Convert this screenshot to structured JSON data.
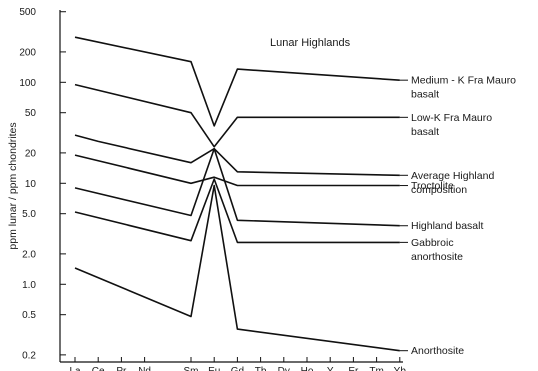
{
  "chart_data": {
    "type": "line",
    "title": "Lunar Highlands",
    "ylabel": "ppm lunar / ppm chondrites",
    "xlabel": "",
    "y_scale": "log",
    "ylim": [
      0.17,
      520
    ],
    "grid": false,
    "categories": [
      "La",
      "Ce",
      "Pr",
      "Nd",
      "Pm",
      "Sm",
      "Eu",
      "Gd",
      "Tb",
      "Dy",
      "Ho",
      "Y",
      "Er",
      "Tm",
      "Yb"
    ],
    "x_tick_labels": [
      "La",
      "Ce",
      "Pr",
      "Nd",
      "Sm",
      "Eu",
      "Gd",
      "Tb",
      "Dy",
      "Ho",
      "Y",
      "Er",
      "Tm",
      "Yb"
    ],
    "y_ticks": [
      0.2,
      0.5,
      1.0,
      2.0,
      5.0,
      10,
      20,
      50,
      100,
      200,
      500
    ],
    "y_tick_labels": [
      "0.2",
      "0.5",
      "1.0",
      "2.0",
      "5.0",
      "10",
      "20",
      "50",
      "100",
      "200",
      "500"
    ],
    "series": [
      {
        "label_lines": [
          "Medium - K Fra Mauro",
          "basalt"
        ],
        "points": [
          [
            "La",
            280
          ],
          [
            "Sm",
            160
          ],
          [
            "Eu",
            37
          ],
          [
            "Gd",
            135
          ],
          [
            "Yb",
            105
          ]
        ]
      },
      {
        "label_lines": [
          "Low-K Fra Mauro",
          "basalt"
        ],
        "points": [
          [
            "La",
            95
          ],
          [
            "Sm",
            50
          ],
          [
            "Eu",
            23
          ],
          [
            "Gd",
            45
          ],
          [
            "Yb",
            45
          ]
        ]
      },
      {
        "label_lines": [
          "Average Highland",
          "composition"
        ],
        "points": [
          [
            "La",
            30
          ],
          [
            "Ce",
            26
          ],
          [
            "Sm",
            16
          ],
          [
            "Eu",
            22
          ],
          [
            "Gd",
            13
          ],
          [
            "Yb",
            12
          ]
        ]
      },
      {
        "label_lines": [
          "Troctolite"
        ],
        "points": [
          [
            "La",
            19
          ],
          [
            "Sm",
            10
          ],
          [
            "Eu",
            11.5
          ],
          [
            "Gd",
            9.5
          ],
          [
            "Yb",
            9.5
          ]
        ]
      },
      {
        "label_lines": [
          "Highland basalt"
        ],
        "points": [
          [
            "La",
            9
          ],
          [
            "Sm",
            4.8
          ],
          [
            "Eu",
            22
          ],
          [
            "Gd",
            4.3
          ],
          [
            "Yb",
            3.8
          ]
        ]
      },
      {
        "label_lines": [
          "Gabbroic",
          "anorthosite"
        ],
        "points": [
          [
            "La",
            5.2
          ],
          [
            "Sm",
            2.7
          ],
          [
            "Eu",
            11
          ],
          [
            "Gd",
            2.6
          ],
          [
            "Yb",
            2.6
          ]
        ]
      },
      {
        "label_lines": [
          "Anorthosite"
        ],
        "points": [
          [
            "La",
            1.45
          ],
          [
            "Sm",
            0.48
          ],
          [
            "Eu",
            9.5
          ],
          [
            "Gd",
            0.36
          ],
          [
            "Yb",
            0.22
          ]
        ]
      }
    ]
  }
}
